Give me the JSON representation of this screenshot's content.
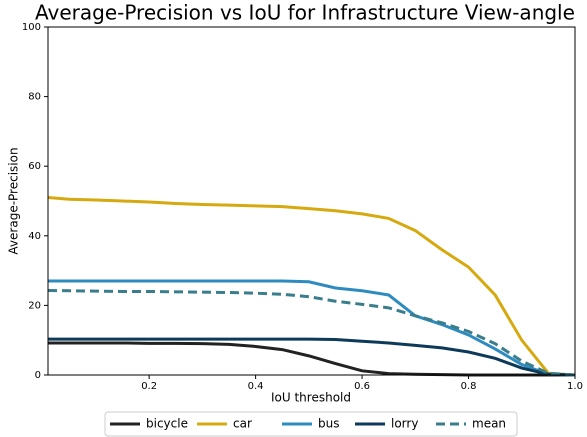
{
  "chart_data": {
    "type": "line",
    "title": "Average-Precision vs IoU for Infrastructure View-angle",
    "x_label": "IoU threshold",
    "y_label": "Average-Precision",
    "x": [
      0.01,
      0.05,
      0.1,
      0.15,
      0.2,
      0.25,
      0.3,
      0.35,
      0.4,
      0.45,
      0.5,
      0.55,
      0.6,
      0.65,
      0.7,
      0.75,
      0.8,
      0.85,
      0.9,
      0.95,
      1.0
    ],
    "series": [
      {
        "name": "bicycle",
        "color": "#222222",
        "linestyle": "solid",
        "values": [
          9.2,
          9.2,
          9.2,
          9.2,
          9.1,
          9.1,
          9.0,
          8.8,
          8.2,
          7.3,
          5.5,
          3.3,
          1.2,
          0.4,
          0.2,
          0.1,
          0,
          0,
          0,
          0,
          0
        ]
      },
      {
        "name": "car",
        "color": "#d6a90f",
        "linestyle": "solid",
        "values": [
          51,
          50.5,
          50.3,
          50,
          49.7,
          49.3,
          49,
          48.8,
          48.6,
          48.4,
          47.8,
          47.2,
          46.3,
          45,
          41.5,
          36,
          31,
          23,
          10,
          0.5,
          0
        ]
      },
      {
        "name": "bus",
        "color": "#2e8bc0",
        "linestyle": "solid",
        "values": [
          27,
          27,
          27,
          27,
          27,
          27,
          27,
          27,
          27,
          27,
          26.8,
          25,
          24.2,
          23,
          17,
          14.5,
          11.5,
          7.5,
          3,
          0.2,
          0
        ]
      },
      {
        "name": "lorry",
        "color": "#0e3a5a",
        "linestyle": "solid",
        "values": [
          10.3,
          10.3,
          10.3,
          10.3,
          10.3,
          10.3,
          10.3,
          10.3,
          10.3,
          10.3,
          10.3,
          10.2,
          9.7,
          9.2,
          8.5,
          7.8,
          6.6,
          4.8,
          2,
          0.2,
          0
        ]
      },
      {
        "name": "mean",
        "color": "#3a7d8c",
        "linestyle": "dashed",
        "values": [
          24.3,
          24.2,
          24.1,
          24,
          24,
          23.9,
          23.8,
          23.7,
          23.5,
          23.2,
          22.5,
          21.2,
          20.3,
          19.3,
          17,
          15,
          12.5,
          9,
          4,
          0.5,
          0
        ]
      }
    ],
    "xlim": [
      0.01,
      1.0
    ],
    "ylim": [
      0,
      100
    ],
    "xticks": [
      0.2,
      0.4,
      0.6,
      0.8,
      {
        "value": 1,
        "label": "1.0"
      }
    ],
    "yticks": [
      0,
      20,
      40,
      60,
      80,
      100
    ],
    "legend": "lower center"
  }
}
